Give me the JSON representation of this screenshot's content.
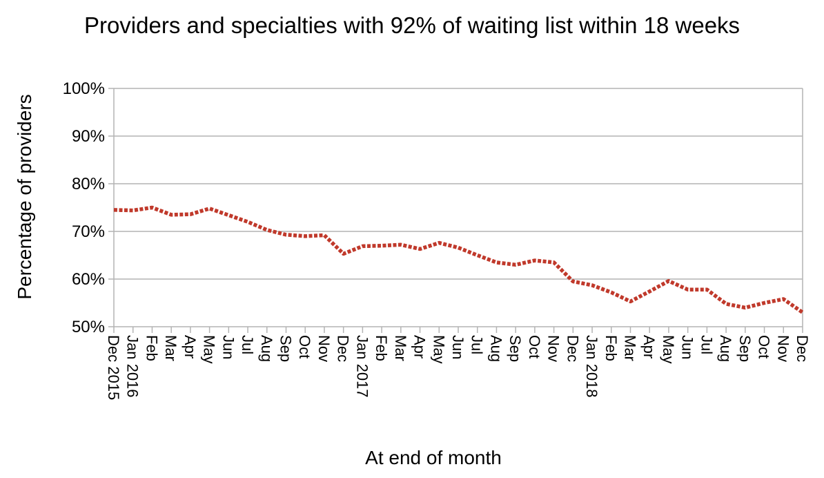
{
  "chart_data": {
    "type": "line",
    "title": "Providers and specialties with 92% of waiting list within 18 weeks",
    "xlabel": "At end of month",
    "ylabel": "Percentage of providers",
    "ylim": [
      50,
      100
    ],
    "y_ticks": [
      50,
      60,
      70,
      80,
      90,
      100
    ],
    "y_tick_format": "%",
    "grid": true,
    "legend": "none",
    "line_color": "#c0392b",
    "categories": [
      "Dec 2015",
      "Jan 2016",
      "Feb",
      "Mar",
      "Apr",
      "May",
      "Jun",
      "Jul",
      "Aug",
      "Sep",
      "Oct",
      "Nov",
      "Dec",
      "Jan 2017",
      "Feb",
      "Mar",
      "Apr",
      "May",
      "Jun",
      "Jul",
      "Aug",
      "Sep",
      "Oct",
      "Nov",
      "Dec",
      "Jan 2018",
      "Feb",
      "Mar",
      "Apr",
      "May",
      "Jun",
      "Jul",
      "Aug",
      "Sep",
      "Oct",
      "Nov",
      "Dec"
    ],
    "values": [
      74.5,
      74.4,
      75.0,
      73.5,
      73.6,
      74.8,
      73.4,
      72.0,
      70.3,
      69.3,
      69.0,
      69.2,
      65.3,
      66.9,
      67.0,
      67.2,
      66.3,
      67.6,
      66.6,
      65.0,
      63.5,
      63.0,
      63.9,
      63.5,
      59.5,
      58.7,
      57.2,
      55.3,
      57.4,
      59.6,
      57.8,
      57.8,
      54.8,
      54.0,
      55.0,
      55.8,
      53.0
    ]
  }
}
